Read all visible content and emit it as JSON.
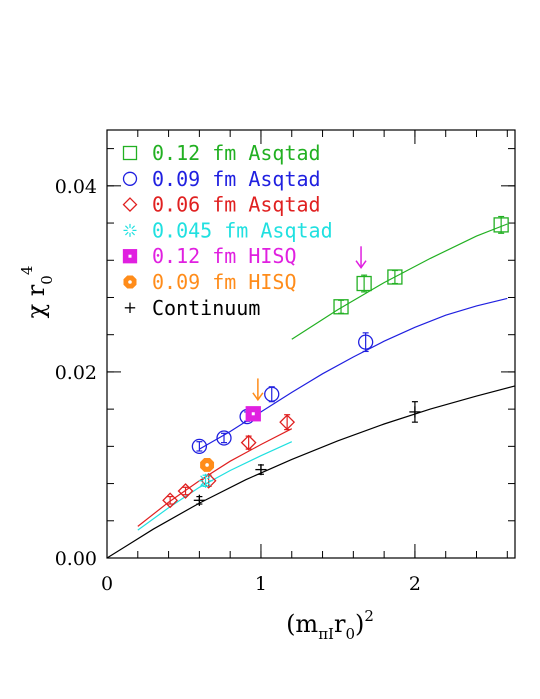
{
  "chart_data": {
    "type": "scatter",
    "title": "",
    "xlabel": "(m_{πI}r_0)^2",
    "ylabel": "χ r_0^4",
    "xlabel_parts": {
      "open": "(m",
      "sub": "πI",
      "mid": "r",
      "sub2": "0",
      "close": ")",
      "sup": "2"
    },
    "ylabel_parts": {
      "base": "χ r",
      "sub": "0",
      "sup": "4"
    },
    "xlim": [
      0,
      2.65
    ],
    "ylim": [
      0,
      0.046
    ],
    "x_ticks": [
      {
        "value": 0,
        "label": "0"
      },
      {
        "value": 1,
        "label": "1"
      },
      {
        "value": 2,
        "label": "2"
      }
    ],
    "y_ticks": [
      {
        "value": 0,
        "label": "0.00"
      },
      {
        "value": 0.02,
        "label": "0.02"
      },
      {
        "value": 0.04,
        "label": "0.04"
      }
    ],
    "x_minor_step": 0.2,
    "y_minor_step": 0.004,
    "grid": false,
    "legend_position": "top-left",
    "series": [
      {
        "name": "0.12 fm Asqtad",
        "marker": "square-open",
        "color": "#22b022",
        "x": [
          1.52,
          1.67,
          1.87,
          2.56
        ],
        "y": [
          0.027,
          0.0295,
          0.0302,
          0.0358
        ],
        "err": [
          0.0007,
          0.0009,
          0.0007,
          0.0009
        ],
        "fit": {
          "x": [
            1.2,
            1.5,
            1.8,
            2.1,
            2.4,
            2.6
          ],
          "y": [
            0.0235,
            0.0267,
            0.0296,
            0.0322,
            0.0346,
            0.0359
          ]
        }
      },
      {
        "name": "0.09 fm Asqtad",
        "marker": "circle-open",
        "color": "#2020e0",
        "x": [
          0.6,
          0.76,
          0.91,
          1.07,
          1.68
        ],
        "y": [
          0.012,
          0.0129,
          0.0152,
          0.0176,
          0.0232
        ],
        "err": [
          0.0005,
          0.0005,
          0.0005,
          0.0008,
          0.001
        ],
        "fit": {
          "x": [
            0.6,
            0.8,
            1.0,
            1.2,
            1.4,
            1.6,
            1.8,
            2.0,
            2.2,
            2.4,
            2.6
          ],
          "y": [
            0.0117,
            0.0136,
            0.0157,
            0.0178,
            0.0198,
            0.0216,
            0.0233,
            0.0248,
            0.0261,
            0.0271,
            0.0279
          ]
        }
      },
      {
        "name": "0.06 fm Asqtad",
        "marker": "diamond-open",
        "color": "#e02020",
        "x": [
          0.41,
          0.51,
          0.66,
          0.92,
          1.17
        ],
        "y": [
          0.0062,
          0.0072,
          0.0083,
          0.0124,
          0.0146
        ],
        "err": [
          0.0004,
          0.0004,
          0.0006,
          0.0007,
          0.0008
        ],
        "fit": {
          "x": [
            0.2,
            0.4,
            0.6,
            0.8,
            1.0,
            1.2
          ],
          "y": [
            0.0034,
            0.006,
            0.0083,
            0.0104,
            0.0122,
            0.0139
          ]
        }
      },
      {
        "name": "0.045 fm Asqtad",
        "marker": "burst",
        "color": "#20e0e0",
        "x": [
          0.64
        ],
        "y": [
          0.0083
        ],
        "err": [
          0.0006
        ],
        "fit": {
          "x": [
            0.2,
            0.4,
            0.6,
            0.8,
            1.0,
            1.2
          ],
          "y": [
            0.003,
            0.0054,
            0.0076,
            0.0094,
            0.011,
            0.0125
          ]
        }
      },
      {
        "name": "0.12 fm HISQ",
        "marker": "square-filled",
        "color": "#e020e0",
        "x": [
          0.95
        ],
        "y": [
          0.0155
        ],
        "err": [
          0.0003
        ],
        "fit": null
      },
      {
        "name": "0.09 fm HISQ",
        "marker": "octagon-filled",
        "color": "#ff8c1a",
        "x": [
          0.65
        ],
        "y": [
          0.01
        ],
        "err": [
          0.0004
        ],
        "fit": null
      },
      {
        "name": "Continuum",
        "marker": "plus",
        "color": "#000000",
        "x": [
          0.6,
          1.0,
          2.0
        ],
        "y": [
          0.0062,
          0.0095,
          0.0157
        ],
        "err": [
          0.0004,
          0.0005,
          0.0011
        ],
        "fit": {
          "x": [
            0,
            0.3,
            0.6,
            0.9,
            1.2,
            1.5,
            1.8,
            2.1,
            2.4,
            2.65
          ],
          "y": [
            0,
            0.0031,
            0.0059,
            0.0084,
            0.0106,
            0.0126,
            0.0144,
            0.016,
            0.0174,
            0.0185
          ]
        }
      }
    ],
    "annotations": [
      {
        "marker": "down-arrow",
        "color": "#e020e0",
        "x": 1.65,
        "y_top": 0.0335,
        "y_bottom": 0.0312
      },
      {
        "marker": "down-arrow",
        "color": "#ff8c1a",
        "x": 0.98,
        "y_top": 0.0193,
        "y_bottom": 0.017
      }
    ]
  }
}
